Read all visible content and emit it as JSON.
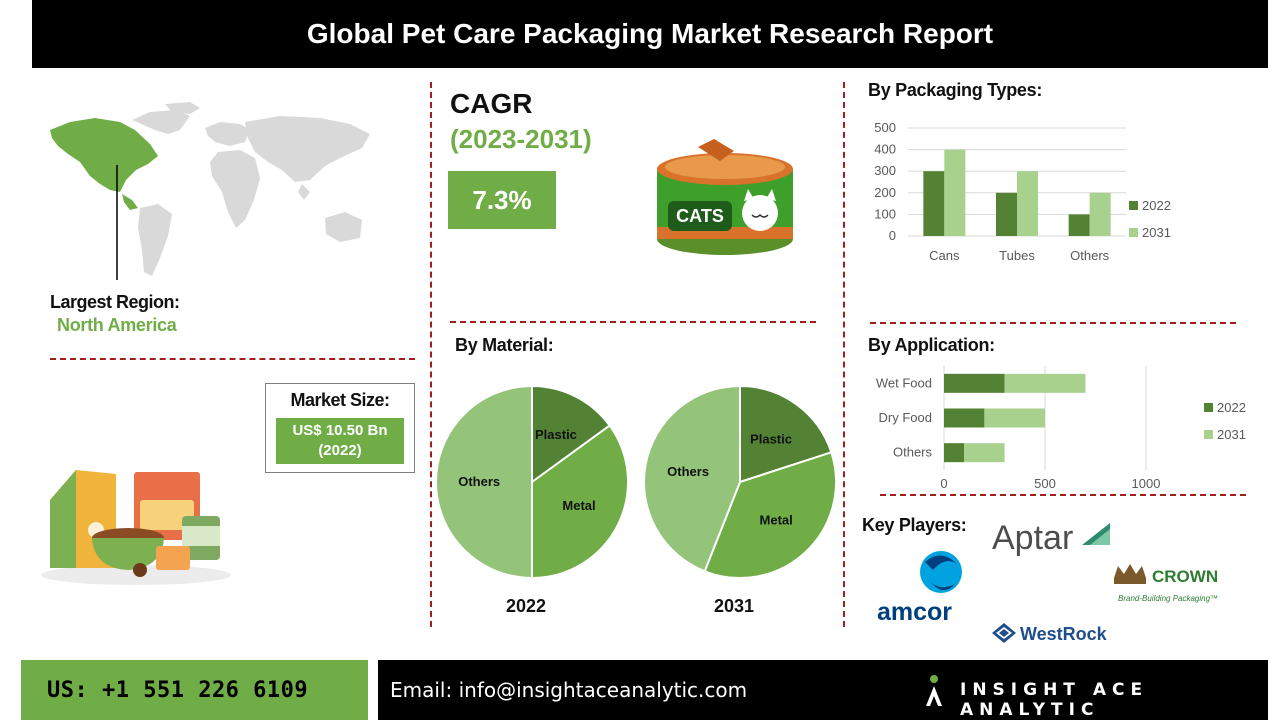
{
  "header": {
    "title": "Global Pet Care Packaging Market Research Report"
  },
  "region": {
    "label": "Largest Region:",
    "value": "North America"
  },
  "market_size": {
    "label": "Market Size:",
    "value_line1": "US$ 10.50 Bn",
    "value_line2": "(2022)"
  },
  "cagr": {
    "label": "CAGR",
    "years": "(2023-2031)",
    "value": "7.3%"
  },
  "can": {
    "label": "CATS"
  },
  "material": {
    "title": "By Material:"
  },
  "packaging": {
    "title": "By Packaging Types:"
  },
  "application": {
    "title": "By Application:"
  },
  "key_players": {
    "title": "Key Players:",
    "aptar": "Aptar",
    "amcor": "amcor",
    "crown": "CROWN",
    "crown_tagline": "Brand-Building Packaging™",
    "westrock": "WestRock"
  },
  "footer": {
    "phone": "US: +1 551 226 6109",
    "email": "Email: info@insightaceanalytic.com",
    "brand": "INSIGHT ACE ANALYTIC"
  },
  "colors": {
    "green_dark": "#548235",
    "green_mid": "#70ad47",
    "green_light": "#a9d18e",
    "green_pale": "#8fbc6a",
    "dash_red": "#a31f1f"
  },
  "chart_data": [
    {
      "type": "pie",
      "title": "2022",
      "labels": [
        "Plastic",
        "Metal",
        "Others"
      ],
      "values": [
        15,
        35,
        50
      ],
      "colors": [
        "#548235",
        "#70ad47",
        "#94c47a"
      ]
    },
    {
      "type": "pie",
      "title": "2031",
      "labels": [
        "Plastic",
        "Metal",
        "Others"
      ],
      "values": [
        20,
        36,
        44
      ],
      "colors": [
        "#548235",
        "#70ad47",
        "#94c47a"
      ]
    },
    {
      "type": "bar",
      "categories": [
        "Cans",
        "Tubes",
        "Others"
      ],
      "series": [
        {
          "name": "2022",
          "values": [
            300,
            200,
            100
          ],
          "color": "#548235"
        },
        {
          "name": "2031",
          "values": [
            400,
            300,
            200
          ],
          "color": "#a9d18e"
        }
      ],
      "ylim": [
        0,
        500
      ],
      "yticks": [
        "0",
        "100",
        "200",
        "300",
        "400",
        "500"
      ],
      "legend": "right"
    },
    {
      "type": "bar",
      "orientation": "horizontal",
      "stacked": true,
      "categories": [
        "Wet Food",
        "Dry Food",
        "Others"
      ],
      "series": [
        {
          "name": "2022",
          "values": [
            300,
            200,
            100
          ],
          "color": "#548235"
        },
        {
          "name": "2031",
          "values": [
            400,
            300,
            200
          ],
          "color": "#a9d18e"
        }
      ],
      "xlim": [
        0,
        1000
      ],
      "xticks": [
        "0",
        "500",
        "1000"
      ],
      "legend": "right"
    }
  ]
}
